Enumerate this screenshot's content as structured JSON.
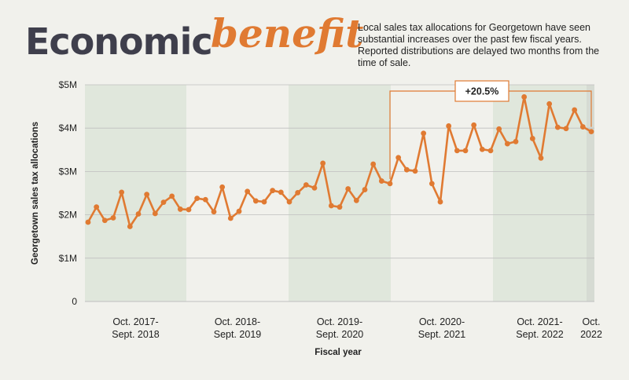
{
  "header": {
    "title_main": "Economic",
    "title_accent": "benefit",
    "description": "Local sales tax allocations for Georgetown have seen substantial increases over the past few fiscal years. Reported distributions are delayed two months from the time of sale."
  },
  "colors": {
    "line": "#e07a32",
    "band": "#e0e7dc",
    "band_last": "#d6dbd3",
    "background": "#f1f1ec",
    "grid": "#bfbfbf"
  },
  "chart_data": {
    "type": "line",
    "xlabel": "Fiscal year",
    "ylabel": "Georgetown sales tax allocations",
    "ylim": [
      0,
      5000000
    ],
    "y_ticks": [
      {
        "value": 0,
        "label": "0"
      },
      {
        "value": 1000000,
        "label": "$1M"
      },
      {
        "value": 2000000,
        "label": "$2M"
      },
      {
        "value": 3000000,
        "label": "$3M"
      },
      {
        "value": 4000000,
        "label": "$4M"
      },
      {
        "value": 5000000,
        "label": "$5M"
      }
    ],
    "fiscal_years": [
      {
        "line1": "Oct. 2017-",
        "line2": "Sept. 2018",
        "shaded": true
      },
      {
        "line1": "Oct. 2018-",
        "line2": "Sept. 2019",
        "shaded": false
      },
      {
        "line1": "Oct. 2019-",
        "line2": "Sept. 2020",
        "shaded": true
      },
      {
        "line1": "Oct. 2020-",
        "line2": "Sept. 2021",
        "shaded": false
      },
      {
        "line1": "Oct. 2021-",
        "line2": "Sept. 2022",
        "shaded": true
      },
      {
        "line1": "Oct.",
        "line2": "2022",
        "shaded": true
      }
    ],
    "series": [
      {
        "values": [
          1830000,
          2180000,
          1870000,
          1930000,
          2520000,
          1730000,
          2020000,
          2470000,
          2030000,
          2290000,
          2430000,
          2130000,
          2120000,
          2380000,
          2350000,
          2070000,
          2640000,
          1920000,
          2080000,
          2540000,
          2320000,
          2300000,
          2560000,
          2520000,
          2300000,
          2510000,
          2690000,
          2620000,
          3190000,
          2210000,
          2180000,
          2600000,
          2330000,
          2580000,
          3170000,
          2780000,
          2720000,
          3320000,
          3040000,
          3010000,
          3880000,
          2720000,
          2300000,
          4050000,
          3480000,
          3480000,
          4070000,
          3510000,
          3480000,
          3980000,
          3640000,
          3690000,
          4720000,
          3760000,
          3310000,
          4560000,
          4020000,
          3990000,
          4420000,
          4030000,
          3920000
        ]
      }
    ],
    "annotation": {
      "label": "+20.5%",
      "from_index": 36,
      "to_index": 60
    }
  }
}
